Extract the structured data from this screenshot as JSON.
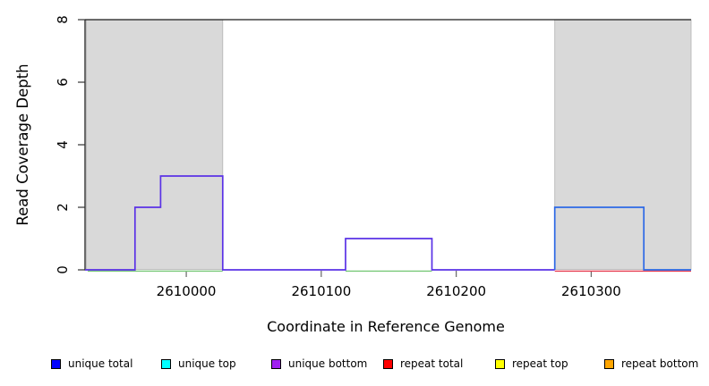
{
  "chart_data": {
    "type": "line",
    "subtype": "step-read-coverage",
    "title": "",
    "xlabel": "Coordinate in Reference Genome",
    "ylabel": "Read Coverage Depth",
    "xlim": [
      2609925,
      2610374
    ],
    "ylim": [
      0,
      8
    ],
    "grid": false,
    "x_tick_values": [
      2610000,
      2610100,
      2610200,
      2610300
    ],
    "x_tick_labels": [
      "2610000",
      "2610100",
      "2610200",
      "2610300"
    ],
    "y_tick_values": [
      0,
      2,
      4,
      6,
      8
    ],
    "y_tick_labels": [
      "0",
      "2",
      "4",
      "6",
      "8"
    ],
    "shaded_regions": [
      {
        "name": "repeat-region-left",
        "x1": 2609926,
        "x2": 2610027,
        "fill": "#d9d9d9",
        "stroke": "#b3b3b3"
      },
      {
        "name": "repeat-region-right",
        "x1": 2610273,
        "x2": 2610374,
        "fill": "#d9d9d9",
        "stroke": "#b3b3b3"
      }
    ],
    "series": [
      {
        "name": "unique bottom",
        "color": "#5a32e6",
        "points": [
          [
            2609925,
            0
          ],
          [
            2609962,
            0
          ],
          [
            2609962,
            2
          ],
          [
            2609981,
            2
          ],
          [
            2609981,
            3
          ],
          [
            2610027,
            3
          ],
          [
            2610027,
            0
          ],
          [
            2610118,
            0
          ],
          [
            2610118,
            1
          ],
          [
            2610182,
            1
          ],
          [
            2610182,
            0
          ],
          [
            2610273,
            0
          ]
        ]
      },
      {
        "name": "unique total",
        "color": "#2d69e6",
        "points": [
          [
            2610273,
            0
          ],
          [
            2610273,
            2
          ],
          [
            2610339,
            2
          ],
          [
            2610339,
            0
          ],
          [
            2610374,
            0
          ]
        ]
      }
    ],
    "baseline_zero_segments": [
      {
        "name": "unique top at zero",
        "color": "#78c878",
        "x1": 2609927,
        "x2": 2610027
      },
      {
        "name": "unique top at zero",
        "color": "#78c878",
        "x1": 2610118,
        "x2": 2610182
      },
      {
        "name": "repeat total at zero",
        "color": "#e63c50",
        "x1": 2610273,
        "x2": 2610374
      }
    ]
  },
  "legend": {
    "items": [
      {
        "label": "unique total",
        "color": "#0000ff"
      },
      {
        "label": "unique top",
        "color": "#00ffff"
      },
      {
        "label": "unique bottom",
        "color": "#a020f0"
      },
      {
        "label": "repeat total",
        "color": "#ff0000"
      },
      {
        "label": "repeat top",
        "color": "#ffff00"
      },
      {
        "label": "repeat bottom",
        "color": "#ffa500"
      }
    ]
  }
}
